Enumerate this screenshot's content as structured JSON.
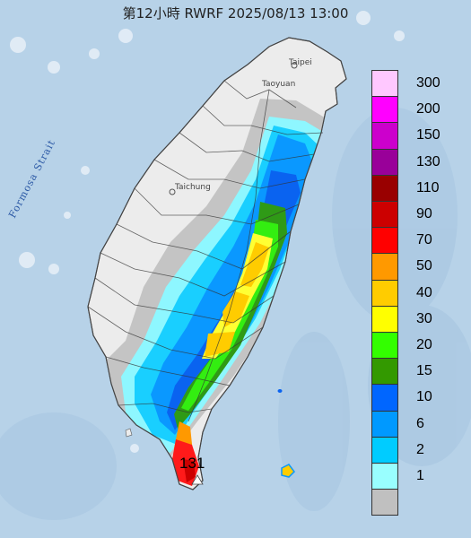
{
  "title": "第12小時  RWRF 2025/08/13 13:00",
  "places": {
    "taipei": "Taipei",
    "taoyuan": "Taoyuan",
    "taichung": "Taichung",
    "strait": "Formosa Strait"
  },
  "max_value_label": "131",
  "legend": {
    "items": [
      {
        "label": "300",
        "color": "#ffc8ff"
      },
      {
        "label": "200",
        "color": "#ff00ff"
      },
      {
        "label": "150",
        "color": "#cc00cc"
      },
      {
        "label": "130",
        "color": "#990099"
      },
      {
        "label": "110",
        "color": "#990000"
      },
      {
        "label": "90",
        "color": "#cc0000"
      },
      {
        "label": "70",
        "color": "#ff0000"
      },
      {
        "label": "50",
        "color": "#ff9900"
      },
      {
        "label": "40",
        "color": "#ffcc00"
      },
      {
        "label": "30",
        "color": "#ffff00"
      },
      {
        "label": "20",
        "color": "#33ff00"
      },
      {
        "label": "15",
        "color": "#339900"
      },
      {
        "label": "10",
        "color": "#0066ff"
      },
      {
        "label": "6",
        "color": "#0099ff"
      },
      {
        "label": "2",
        "color": "#00ccff"
      },
      {
        "label": "1",
        "color": "#99ffff"
      },
      {
        "label": "",
        "color": "#c0c0c0"
      }
    ]
  }
}
